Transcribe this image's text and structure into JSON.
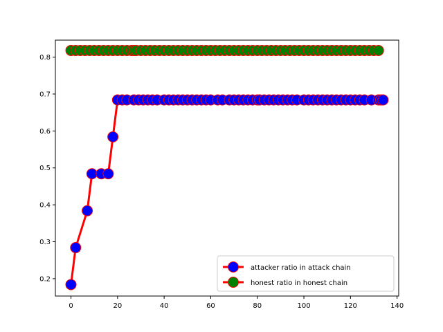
{
  "chart_data": {
    "type": "line",
    "title": "",
    "xlabel": "",
    "ylabel": "",
    "xlim": [
      -6.7,
      140.7
    ],
    "ylim": [
      0.153,
      0.846
    ],
    "xticks": [
      0,
      20,
      40,
      60,
      80,
      100,
      120,
      140
    ],
    "yticks": [
      0.2,
      0.3,
      0.4,
      0.5,
      0.6,
      0.7,
      0.8
    ],
    "xtick_labels": [
      "0",
      "20",
      "40",
      "60",
      "80",
      "100",
      "120",
      "140"
    ],
    "ytick_labels": [
      "0.2",
      "0.3",
      "0.4",
      "0.5",
      "0.6",
      "0.7",
      "0.8"
    ],
    "grid": false,
    "legend_position": "lower-right",
    "series": [
      {
        "name": "attacker ratio in attack chain",
        "line_color": "#ff0000",
        "marker_face": "#0000ff",
        "marker_edge": "#ff0000",
        "x": [
          0,
          2,
          7,
          9,
          13,
          16,
          18,
          20,
          22,
          24,
          27,
          29,
          31,
          33,
          35,
          37,
          40,
          42,
          44,
          46,
          48,
          50,
          52,
          54,
          56,
          58,
          60,
          63,
          65,
          68,
          70,
          72,
          74,
          76,
          78,
          80,
          81,
          83,
          85,
          87,
          89,
          91,
          93,
          95,
          97,
          100,
          102,
          104,
          106,
          108,
          110,
          112,
          114,
          116,
          118,
          120,
          122,
          124,
          126,
          129,
          132,
          133,
          134
        ],
        "y": [
          0.184,
          0.284,
          0.384,
          0.484,
          0.484,
          0.484,
          0.584,
          0.684,
          0.684,
          0.684,
          0.684,
          0.684,
          0.684,
          0.684,
          0.684,
          0.684,
          0.684,
          0.684,
          0.684,
          0.684,
          0.684,
          0.684,
          0.684,
          0.684,
          0.684,
          0.684,
          0.684,
          0.684,
          0.684,
          0.684,
          0.684,
          0.684,
          0.684,
          0.684,
          0.684,
          0.684,
          0.684,
          0.684,
          0.684,
          0.684,
          0.684,
          0.684,
          0.684,
          0.684,
          0.684,
          0.684,
          0.684,
          0.684,
          0.684,
          0.684,
          0.684,
          0.684,
          0.684,
          0.684,
          0.684,
          0.684,
          0.684,
          0.684,
          0.684,
          0.684,
          0.684,
          0.684,
          0.684
        ]
      },
      {
        "name": "honest ratio in honest chain",
        "line_color": "#ff0000",
        "marker_face": "#008000",
        "marker_edge": "#ff0000",
        "x": [
          0,
          2,
          4,
          6,
          8,
          10,
          12,
          14,
          16,
          18,
          20,
          22,
          24,
          26,
          27,
          28,
          30,
          32,
          34,
          36,
          38,
          40,
          42,
          44,
          46,
          48,
          50,
          52,
          54,
          56,
          58,
          60,
          62,
          64,
          66,
          68,
          70,
          72,
          74,
          76,
          78,
          80,
          82,
          84,
          86,
          88,
          90,
          92,
          94,
          96,
          98,
          100,
          102,
          104,
          106,
          108,
          110,
          112,
          114,
          116,
          118,
          120,
          122,
          124,
          126,
          128,
          130,
          132
        ],
        "y": [
          0.818,
          0.818,
          0.818,
          0.818,
          0.818,
          0.818,
          0.818,
          0.818,
          0.818,
          0.818,
          0.818,
          0.818,
          0.818,
          0.818,
          0.818,
          0.818,
          0.818,
          0.818,
          0.818,
          0.818,
          0.818,
          0.818,
          0.818,
          0.818,
          0.818,
          0.818,
          0.818,
          0.818,
          0.818,
          0.818,
          0.818,
          0.818,
          0.818,
          0.818,
          0.818,
          0.818,
          0.818,
          0.818,
          0.818,
          0.818,
          0.818,
          0.818,
          0.818,
          0.818,
          0.818,
          0.818,
          0.818,
          0.818,
          0.818,
          0.818,
          0.818,
          0.818,
          0.818,
          0.818,
          0.818,
          0.818,
          0.818,
          0.818,
          0.818,
          0.818,
          0.818,
          0.818,
          0.818,
          0.818,
          0.818,
          0.818,
          0.818,
          0.818
        ]
      }
    ]
  }
}
